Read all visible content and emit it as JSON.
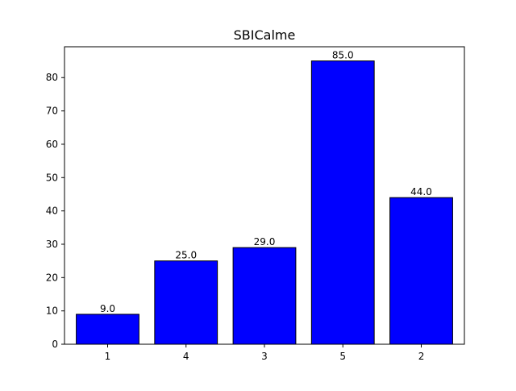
{
  "chart_data": {
    "type": "bar",
    "title": "SBICalme",
    "xlabel": "",
    "ylabel": "",
    "categories": [
      "1",
      "4",
      "3",
      "5",
      "2"
    ],
    "values": [
      9.0,
      25.0,
      29.0,
      85.0,
      44.0
    ],
    "value_labels": [
      "9.0",
      "25.0",
      "29.0",
      "85.0",
      "44.0"
    ],
    "yticks": [
      0,
      10,
      20,
      30,
      40,
      50,
      60,
      70,
      80
    ],
    "ylim": [
      0,
      89.25
    ],
    "bar_color": "#0000ff",
    "edge_color": "#000000",
    "grid": false,
    "legend": "none"
  }
}
